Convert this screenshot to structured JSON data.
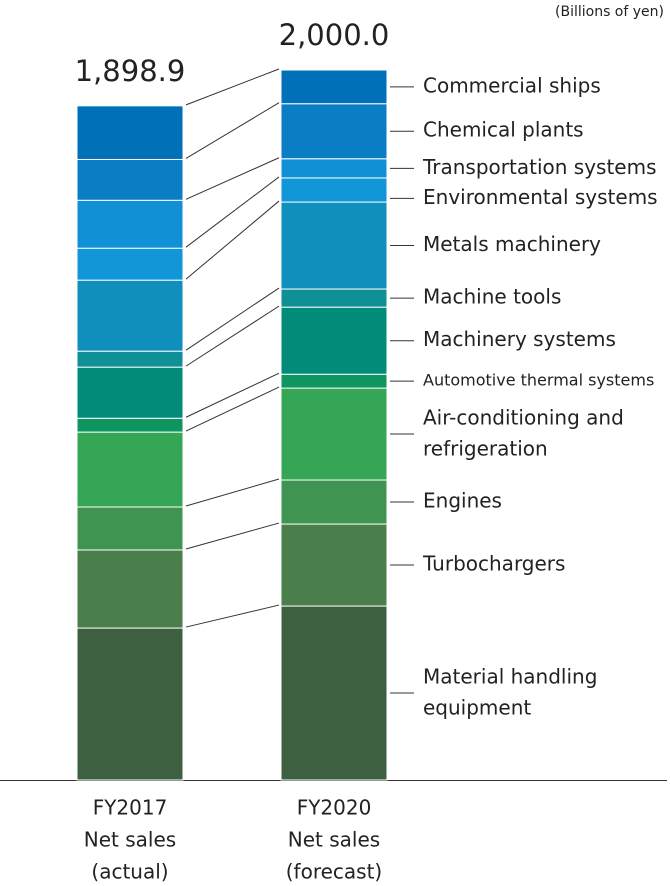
{
  "chart_data": {
    "type": "stacked_bar",
    "unit_note": "(Billions of yen)",
    "categories": [
      [
        "FY2017",
        "Net sales",
        "(actual)"
      ],
      [
        "FY2020",
        "Net sales",
        "(forecast)"
      ]
    ],
    "totals": [
      1898.9,
      2000.0
    ],
    "total_labels": [
      "1,898.9",
      "2,000.0"
    ],
    "series": [
      {
        "name": "Commercial ships",
        "color": "#0071b9",
        "values": [
          151,
          95
        ]
      },
      {
        "name": "Chemical plants",
        "color": "#0a7dc5",
        "values": [
          115,
          155
        ]
      },
      {
        "name": "Transportation systems",
        "color": "#1190d5",
        "values": [
          135,
          54
        ]
      },
      {
        "name": "Environmental systems",
        "color": "#1196d8",
        "values": [
          90,
          68
        ]
      },
      {
        "name": "Metals machinery",
        "color": "#0f8fbc",
        "values": [
          200,
          245
        ]
      },
      {
        "name": "Machine tools",
        "color": "#0e9096",
        "values": [
          45,
          51
        ]
      },
      {
        "name": "Machinery systems",
        "color": "#008c79",
        "values": [
          144,
          189
        ]
      },
      {
        "name": "Automotive thermal systems",
        "color": "#0f9660",
        "values": [
          39,
          39
        ]
      },
      {
        "name": "Air-conditioning and refrigeration",
        "color": "#35a656",
        "values": [
          211,
          259
        ]
      },
      {
        "name": "Engines",
        "color": "#3f9451",
        "values": [
          121,
          124
        ]
      },
      {
        "name": "Turbochargers",
        "color": "#4a7e4b",
        "values": [
          220,
          231
        ]
      },
      {
        "name": "Material handling equipment",
        "color": "#3d6140",
        "values": [
          428,
          490
        ]
      }
    ]
  }
}
